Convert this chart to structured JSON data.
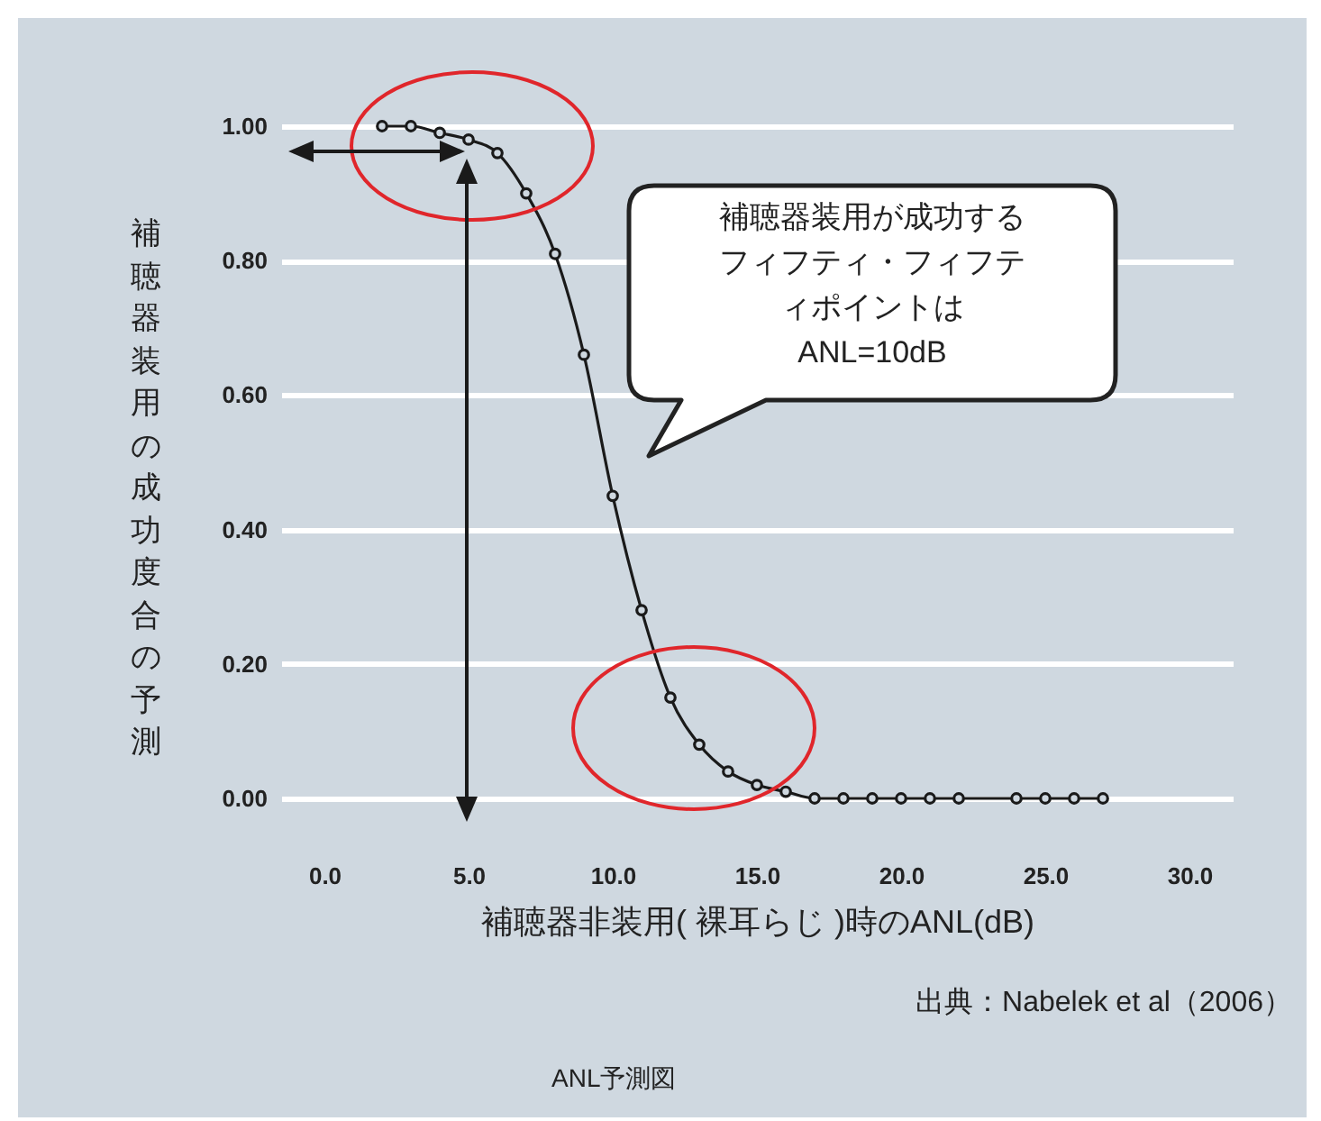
{
  "chart_data": {
    "type": "line",
    "title": "ANL予測図",
    "xlabel": "補聴器非装用( 裸耳らじ )時のANL(dB)",
    "ylabel": "補聴器装用の成功度合の予測",
    "annotations": [
      "補聴器装用が成功するフィフティ・フィフティポイントはANL=10dB",
      "出典：Nabelek et al（2006）"
    ],
    "x": [
      2,
      3,
      4,
      5,
      6,
      7,
      8,
      9,
      10,
      11,
      12,
      13,
      14,
      15,
      16,
      17,
      18,
      19,
      20,
      21,
      22,
      24,
      25,
      26,
      27
    ],
    "values": [
      1.0,
      1.0,
      0.99,
      0.98,
      0.96,
      0.9,
      0.81,
      0.66,
      0.45,
      0.28,
      0.15,
      0.08,
      0.04,
      0.02,
      0.01,
      0,
      0,
      0,
      0,
      0,
      0,
      0,
      0,
      0,
      0
    ],
    "color": "#1a1a1a",
    "marker": "circle",
    "grid": "y",
    "xlim": [
      -1.5,
      31.5
    ],
    "ylim": [
      0,
      1
    ],
    "xticks": [
      {
        "value": 0,
        "label": "0.0"
      },
      {
        "value": 5,
        "label": "5.0"
      },
      {
        "value": 10,
        "label": "10.0"
      },
      {
        "value": 15,
        "label": "15.0"
      },
      {
        "value": 20,
        "label": "20.0"
      },
      {
        "value": 25,
        "label": "25.0"
      },
      {
        "value": 30,
        "label": "30.0"
      }
    ],
    "yticks": [
      {
        "value": 0,
        "label": "0.00"
      },
      {
        "value": 0.2,
        "label": "0.20"
      },
      {
        "value": 0.4,
        "label": "0.40"
      },
      {
        "value": 0.6,
        "label": "0.60"
      },
      {
        "value": 0.8,
        "label": "0.80"
      },
      {
        "value": 1,
        "label": "1.00"
      }
    ]
  }
}
